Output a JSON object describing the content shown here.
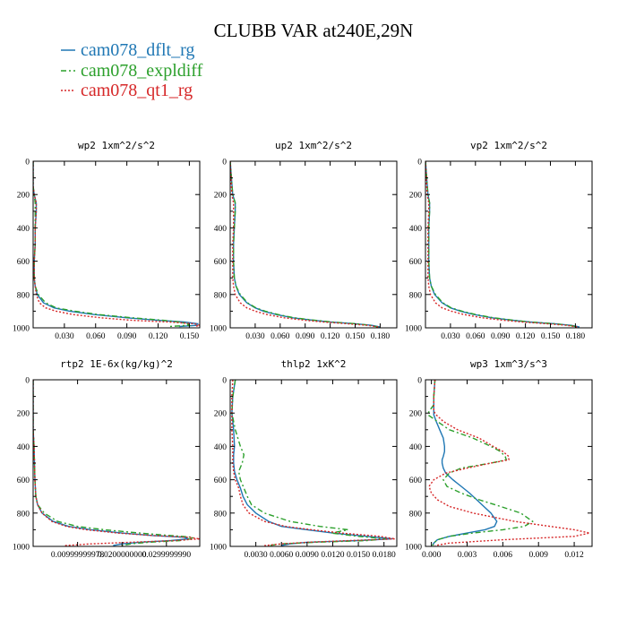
{
  "title": "CLUBB VAR at240E,29N",
  "legend": [
    {
      "label": "cam078_dflt_rg",
      "color": "#1f77b4"
    },
    {
      "label": "cam078_expldiff",
      "color": "#2ca02c"
    },
    {
      "label": "cam078_qt1_rg",
      "color": "#d62728"
    }
  ],
  "chart_data": [
    {
      "type": "line",
      "title": "wp2 1xm^2/s^2",
      "xlim": [
        0,
        0.16
      ],
      "ylim": [
        1000,
        0
      ],
      "xticks": [
        0.03,
        0.06,
        0.09,
        0.12,
        0.15
      ],
      "xtick_labels": [
        "0.030",
        "0.060",
        "0.090",
        "0.120",
        "0.150"
      ],
      "yticks": [
        0,
        200,
        400,
        600,
        800,
        1000
      ],
      "ytick_labels": [
        "0",
        "200",
        "400",
        "600",
        "800",
        "1000"
      ],
      "y": [
        0,
        150,
        200,
        250,
        300,
        400,
        500,
        600,
        700,
        750,
        800,
        850,
        880,
        900,
        920,
        940,
        955,
        965,
        975,
        985,
        992
      ],
      "series": [
        {
          "name": "cam078_dflt_rg",
          "values": [
            0,
            0,
            0.001,
            0.003,
            0.003,
            0.002,
            0.002,
            0.001,
            0.001,
            0.002,
            0.004,
            0.01,
            0.02,
            0.035,
            0.058,
            0.09,
            0.12,
            0.145,
            0.158,
            0.157,
            0.14
          ]
        },
        {
          "name": "cam078_expldiff",
          "values": [
            0,
            0,
            0.001,
            0.002,
            0.002,
            0.002,
            0.002,
            0.001,
            0.001,
            0.002,
            0.005,
            0.012,
            0.022,
            0.04,
            0.062,
            0.095,
            0.125,
            0.14,
            0.148,
            0.15,
            0.13
          ]
        },
        {
          "name": "cam078_qt1_rg",
          "values": [
            0,
            0,
            0.001,
            0.003,
            0.003,
            0.002,
            0.002,
            0.001,
            0.001,
            0.002,
            0.003,
            0.006,
            0.012,
            0.022,
            0.038,
            0.065,
            0.095,
            0.13,
            0.155,
            0.16,
            0.155
          ]
        }
      ]
    },
    {
      "type": "line",
      "title": "up2 1xm^2/s^2",
      "xlim": [
        0,
        0.2
      ],
      "ylim": [
        1000,
        0
      ],
      "xticks": [
        0.03,
        0.06,
        0.09,
        0.12,
        0.15,
        0.18
      ],
      "xtick_labels": [
        "0.030",
        "0.060",
        "0.090",
        "0.120",
        "0.150",
        "0.180"
      ],
      "yticks": [
        0,
        200,
        400,
        600,
        800,
        1000
      ],
      "ytick_labels": [
        "0",
        "200",
        "400",
        "600",
        "800",
        "1000"
      ],
      "y": [
        0,
        200,
        250,
        300,
        400,
        500,
        600,
        700,
        750,
        800,
        850,
        880,
        900,
        920,
        940,
        955,
        965,
        975,
        985,
        995
      ],
      "series": [
        {
          "name": "cam078_dflt_rg",
          "values": [
            0,
            0.003,
            0.006,
            0.006,
            0.005,
            0.004,
            0.004,
            0.005,
            0.007,
            0.011,
            0.02,
            0.03,
            0.04,
            0.055,
            0.075,
            0.1,
            0.12,
            0.15,
            0.17,
            0.18
          ]
        },
        {
          "name": "cam078_expldiff",
          "values": [
            0,
            0.003,
            0.006,
            0.006,
            0.005,
            0.004,
            0.004,
            0.005,
            0.007,
            0.012,
            0.021,
            0.031,
            0.042,
            0.057,
            0.077,
            0.102,
            0.122,
            0.15,
            0.168,
            0.178
          ]
        },
        {
          "name": "cam078_qt1_rg",
          "values": [
            0,
            0.002,
            0.004,
            0.004,
            0.004,
            0.003,
            0.003,
            0.003,
            0.004,
            0.006,
            0.012,
            0.02,
            0.03,
            0.044,
            0.065,
            0.09,
            0.112,
            0.14,
            0.165,
            0.178
          ]
        }
      ]
    },
    {
      "type": "line",
      "title": "vp2 1xm^2/s^2",
      "xlim": [
        0,
        0.2
      ],
      "ylim": [
        1000,
        0
      ],
      "xticks": [
        0.03,
        0.06,
        0.09,
        0.12,
        0.15,
        0.18
      ],
      "xtick_labels": [
        "0.030",
        "0.060",
        "0.090",
        "0.120",
        "0.150",
        "0.180"
      ],
      "yticks": [
        0,
        200,
        400,
        600,
        800,
        1000
      ],
      "ytick_labels": [
        "0",
        "200",
        "400",
        "600",
        "800",
        "1000"
      ],
      "y": [
        0,
        200,
        250,
        300,
        400,
        500,
        600,
        700,
        750,
        800,
        850,
        880,
        900,
        920,
        940,
        955,
        965,
        975,
        985,
        995
      ],
      "series": [
        {
          "name": "cam078_dflt_rg",
          "values": [
            0,
            0.003,
            0.005,
            0.005,
            0.004,
            0.004,
            0.004,
            0.005,
            0.007,
            0.011,
            0.02,
            0.03,
            0.042,
            0.058,
            0.08,
            0.105,
            0.125,
            0.155,
            0.175,
            0.185
          ]
        },
        {
          "name": "cam078_expldiff",
          "values": [
            0,
            0.003,
            0.005,
            0.005,
            0.004,
            0.004,
            0.004,
            0.005,
            0.007,
            0.012,
            0.021,
            0.031,
            0.044,
            0.06,
            0.082,
            0.106,
            0.126,
            0.155,
            0.173,
            0.183
          ]
        },
        {
          "name": "cam078_qt1_rg",
          "values": [
            0,
            0.002,
            0.004,
            0.004,
            0.003,
            0.003,
            0.003,
            0.003,
            0.004,
            0.006,
            0.012,
            0.02,
            0.031,
            0.046,
            0.068,
            0.094,
            0.116,
            0.145,
            0.17,
            0.183
          ]
        }
      ]
    },
    {
      "type": "line",
      "title": "rtp2 1E-6x(kg/kg)^2",
      "xlim": [
        0,
        0.0375
      ],
      "ylim": [
        1000,
        0
      ],
      "xticks": [
        0.01,
        0.02,
        0.03
      ],
      "xtick_labels": [
        "0.00999999978",
        "0.0200000000",
        "0.0299999990"
      ],
      "yticks": [
        0,
        200,
        400,
        600,
        800,
        1000
      ],
      "ytick_labels": [
        "0",
        "200",
        "400",
        "600",
        "800",
        "1000"
      ],
      "y": [
        0,
        300,
        400,
        500,
        600,
        700,
        750,
        800,
        850,
        880,
        900,
        920,
        935,
        945,
        955,
        965,
        975,
        985,
        995
      ],
      "series": [
        {
          "name": "cam078_dflt_rg",
          "values": [
            0,
            0,
            0.0002,
            0.0003,
            0.0004,
            0.0006,
            0.001,
            0.002,
            0.0045,
            0.008,
            0.013,
            0.02,
            0.027,
            0.034,
            0.035,
            0.031,
            0.024,
            0.02,
            0.018
          ]
        },
        {
          "name": "cam078_expldiff",
          "values": [
            0,
            0,
            0.0002,
            0.0003,
            0.0004,
            0.0006,
            0.001,
            0.0025,
            0.0055,
            0.01,
            0.016,
            0.024,
            0.031,
            0.036,
            0.0355,
            0.033,
            0.026,
            0.022,
            0.02
          ]
        },
        {
          "name": "cam078_qt1_rg",
          "values": [
            0,
            0,
            0.0002,
            0.0003,
            0.0004,
            0.0006,
            0.001,
            0.002,
            0.0042,
            0.0075,
            0.012,
            0.019,
            0.027,
            0.035,
            0.0375,
            0.032,
            0.022,
            0.013,
            0.007
          ]
        }
      ]
    },
    {
      "type": "line",
      "title": "thlp2 1xK^2",
      "xlim": [
        0,
        0.0195
      ],
      "ylim": [
        1000,
        0
      ],
      "xticks": [
        0.003,
        0.006,
        0.009,
        0.012,
        0.015,
        0.018
      ],
      "xtick_labels": [
        "0.0030",
        "0.0060",
        "0.0090",
        "0.0120",
        "0.0150",
        "0.0180"
      ],
      "yticks": [
        0,
        200,
        400,
        600,
        800,
        1000
      ],
      "ytick_labels": [
        "0",
        "200",
        "400",
        "600",
        "800",
        "1000"
      ],
      "y": [
        0,
        100,
        200,
        300,
        400,
        450,
        500,
        550,
        600,
        650,
        700,
        750,
        800,
        850,
        880,
        900,
        920,
        940,
        955,
        965,
        975,
        985,
        995
      ],
      "series": [
        {
          "name": "cam078_dflt_rg",
          "values": [
            0.0006,
            0.0003,
            0.0002,
            0.0004,
            0.0005,
            0.0004,
            0.0004,
            0.0005,
            0.0008,
            0.0012,
            0.0015,
            0.002,
            0.003,
            0.0045,
            0.006,
            0.009,
            0.012,
            0.016,
            0.019,
            0.015,
            0.009,
            0.007,
            0.006
          ]
        },
        {
          "name": "cam078_expldiff",
          "values": [
            0.0006,
            0.0003,
            0.0002,
            0.0006,
            0.0012,
            0.0016,
            0.0014,
            0.001,
            0.0012,
            0.0016,
            0.002,
            0.0025,
            0.004,
            0.007,
            0.0105,
            0.0138,
            0.0118,
            0.015,
            0.0182,
            0.016,
            0.01,
            0.006,
            0.0045
          ]
        },
        {
          "name": "cam078_qt1_rg",
          "values": [
            0.0003,
            0.0002,
            0.0002,
            0.0002,
            0.0003,
            0.0003,
            0.0003,
            0.0004,
            0.0006,
            0.001,
            0.0012,
            0.0015,
            0.0022,
            0.004,
            0.0065,
            0.0095,
            0.013,
            0.0175,
            0.0193,
            0.014,
            0.009,
            0.006,
            0.004
          ]
        }
      ]
    },
    {
      "type": "line",
      "title": "wp3 1xm^3/s^3",
      "xlim": [
        -0.0005,
        0.0135
      ],
      "ylim": [
        1000,
        0
      ],
      "xticks": [
        0.0,
        0.003,
        0.006,
        0.009,
        0.012
      ],
      "xtick_labels": [
        "0.000",
        "0.003",
        "0.006",
        "0.009",
        "0.012"
      ],
      "yticks": [
        0,
        200,
        400,
        600,
        800,
        1000
      ],
      "ytick_labels": [
        "0",
        "200",
        "400",
        "600",
        "800",
        "1000"
      ],
      "y": [
        0,
        100,
        150,
        190,
        210,
        250,
        300,
        350,
        400,
        430,
        460,
        480,
        500,
        530,
        560,
        600,
        640,
        680,
        720,
        760,
        800,
        850,
        880,
        900,
        920,
        940,
        960,
        980,
        995
      ],
      "series": [
        {
          "name": "cam078_dflt_rg",
          "values": [
            0.0003,
            0.0002,
            0.0002,
            0.0002,
            0.0002,
            0.0004,
            0.0007,
            0.001,
            0.0011,
            0.0011,
            0.001,
            0.0009,
            0.0009,
            0.001,
            0.0012,
            0.0018,
            0.0025,
            0.0032,
            0.0038,
            0.0044,
            0.005,
            0.0055,
            0.0053,
            0.0045,
            0.003,
            0.0015,
            0.0005,
            0.0002,
            0.0001
          ]
        },
        {
          "name": "cam078_expldiff",
          "values": [
            0.0003,
            0.0002,
            0.0002,
            -0.0002,
            -0.0003,
            0.0005,
            0.0015,
            0.0035,
            0.005,
            0.0058,
            0.0062,
            0.0063,
            0.005,
            0.0025,
            0.0015,
            0.001,
            0.0013,
            0.0025,
            0.004,
            0.0058,
            0.0075,
            0.0085,
            0.0078,
            0.006,
            0.0035,
            0.0015,
            0.0005,
            0.0002,
            0.0001
          ]
        },
        {
          "name": "cam078_qt1_rg",
          "values": [
            0.0003,
            0.0002,
            0.0002,
            0.0002,
            0.0004,
            0.001,
            0.0022,
            0.004,
            0.0052,
            0.006,
            0.0065,
            0.0065,
            0.005,
            0.003,
            0.0012,
            0.0002,
            -0.0002,
            0.0,
            0.0005,
            0.0015,
            0.0035,
            0.007,
            0.01,
            0.012,
            0.0133,
            0.012,
            0.006,
            0.0015,
            0.0003
          ]
        }
      ]
    }
  ]
}
